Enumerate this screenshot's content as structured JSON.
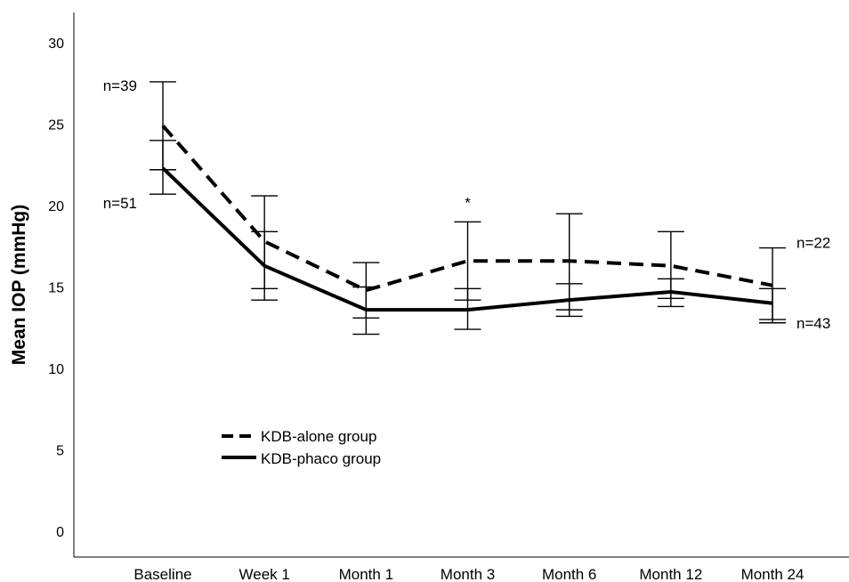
{
  "chart_data": {
    "type": "line",
    "title": "",
    "xlabel": "",
    "ylabel": "Mean IOP (mmHg)",
    "ylim": [
      0,
      30
    ],
    "yticks": [
      0,
      5,
      10,
      15,
      20,
      25,
      30
    ],
    "grid": false,
    "legend_position": "lower-left",
    "categories": [
      "Baseline",
      "Week 1",
      "Month 1",
      "Month 3",
      "Month 6",
      "Month 12",
      "Month 24"
    ],
    "series": [
      {
        "name": "KDB-alone group",
        "style": "dashed",
        "color": "#000000",
        "values": [
          24.9,
          17.8,
          14.8,
          16.6,
          16.6,
          16.3,
          15.1
        ],
        "err_low": [
          22.2,
          14.9,
          13.1,
          14.2,
          13.6,
          14.3,
          12.8
        ],
        "err_high": [
          27.6,
          20.6,
          16.5,
          19.0,
          19.5,
          18.4,
          17.4
        ]
      },
      {
        "name": "KDB-phaco group",
        "style": "solid",
        "color": "#000000",
        "values": [
          22.3,
          16.3,
          13.6,
          13.6,
          14.2,
          14.7,
          14.0
        ],
        "err_low": [
          20.7,
          14.2,
          12.1,
          12.4,
          13.2,
          13.8,
          13.0
        ],
        "err_high": [
          24.0,
          18.4,
          15.0,
          14.9,
          15.2,
          15.5,
          14.9
        ]
      }
    ],
    "annotations": [
      {
        "text": "n=39",
        "series": 0,
        "category": 0
      },
      {
        "text": "n=51",
        "series": 1,
        "category": 0
      },
      {
        "text": "n=22",
        "series": 0,
        "category": 6
      },
      {
        "text": "n=43",
        "series": 1,
        "category": 6
      },
      {
        "text": "*",
        "series": 0,
        "category": 3
      }
    ]
  }
}
